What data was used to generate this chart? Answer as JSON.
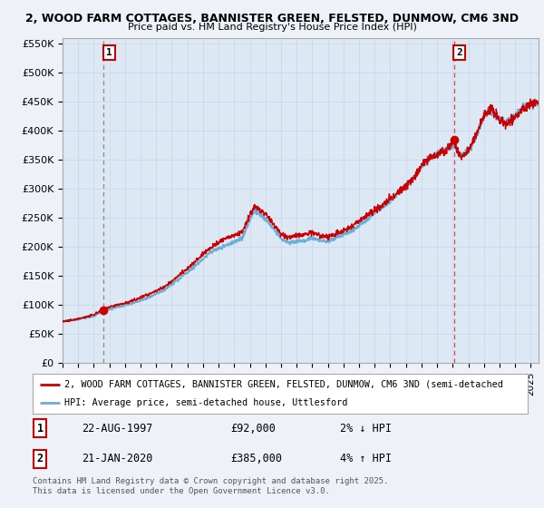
{
  "title_line1": "2, WOOD FARM COTTAGES, BANNISTER GREEN, FELSTED, DUNMOW, CM6 3ND",
  "title_line2": "Price paid vs. HM Land Registry's House Price Index (HPI)",
  "xlim_start": 1995.0,
  "xlim_end": 2025.5,
  "ylim": [
    0,
    560000
  ],
  "yticks": [
    0,
    50000,
    100000,
    150000,
    200000,
    250000,
    300000,
    350000,
    400000,
    450000,
    500000,
    550000
  ],
  "ytick_labels": [
    "£0",
    "£50K",
    "£100K",
    "£150K",
    "£200K",
    "£250K",
    "£300K",
    "£350K",
    "£400K",
    "£450K",
    "£500K",
    "£550K"
  ],
  "purchase1_date": 1997.64,
  "purchase1_price": 92000,
  "purchase1_label": "1",
  "purchase2_date": 2020.07,
  "purchase2_price": 385000,
  "purchase2_label": "2",
  "hpi_color": "#6baed6",
  "price_color": "#cc0000",
  "dashed1_color": "#888888",
  "dashed2_color": "#dd4444",
  "background_color": "#eef2f8",
  "plot_bg_color": "#dde8f5",
  "legend_line1": "2, WOOD FARM COTTAGES, BANNISTER GREEN, FELSTED, DUNMOW, CM6 3ND (semi-detached",
  "legend_line2": "HPI: Average price, semi-detached house, Uttlesford",
  "table_row1_label": "1",
  "table_row1_date": "22-AUG-1997",
  "table_row1_price": "£92,000",
  "table_row1_hpi": "2% ↓ HPI",
  "table_row2_label": "2",
  "table_row2_date": "21-JAN-2020",
  "table_row2_price": "£385,000",
  "table_row2_hpi": "4% ↑ HPI",
  "footer": "Contains HM Land Registry data © Crown copyright and database right 2025.\nThis data is licensed under the Open Government Licence v3.0.",
  "key_years": [
    1995.0,
    1996.0,
    1997.0,
    1997.64,
    1998.5,
    1999.5,
    2000.5,
    2001.5,
    2002.5,
    2003.5,
    2004.5,
    2005.5,
    2006.5,
    2007.3,
    2008.0,
    2008.5,
    2009.0,
    2009.5,
    2010.5,
    2011.0,
    2011.5,
    2012.0,
    2012.5,
    2013.5,
    2014.5,
    2015.5,
    2016.5,
    2017.5,
    2018.0,
    2018.5,
    2019.0,
    2019.5,
    2020.07,
    2020.5,
    2021.0,
    2021.5,
    2022.0,
    2022.5,
    2023.0,
    2023.5,
    2024.0,
    2024.5,
    2025.0,
    2025.4
  ],
  "key_hpi": [
    72000,
    76000,
    82000,
    92000,
    98000,
    105000,
    115000,
    128000,
    148000,
    170000,
    195000,
    208000,
    220000,
    268000,
    255000,
    238000,
    220000,
    215000,
    218000,
    222000,
    218000,
    215000,
    220000,
    232000,
    252000,
    272000,
    295000,
    320000,
    342000,
    355000,
    362000,
    370000,
    382000,
    358000,
    370000,
    395000,
    430000,
    440000,
    420000,
    415000,
    425000,
    440000,
    445000,
    450000
  ],
  "noise_hpi": 0.018,
  "noise_price": 0.025
}
